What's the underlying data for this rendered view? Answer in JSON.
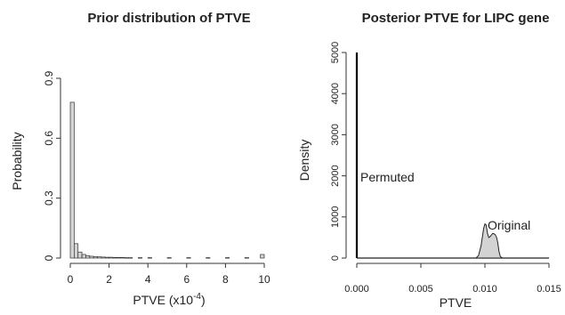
{
  "chart_data": [
    {
      "type": "bar",
      "title": "Prior distribution of PTVE",
      "xlabel": "PTVE (x10",
      "xlabel_exp": "-4",
      "xlabel_close": ")",
      "ylabel": "Probability",
      "xlim": [
        0,
        10
      ],
      "ylim": [
        0,
        0.9
      ],
      "xticks": [
        "0",
        "2",
        "4",
        "6",
        "8",
        "10"
      ],
      "xtick_values": [
        0,
        2,
        4,
        6,
        8,
        10
      ],
      "yticks": [
        "0",
        "0.3",
        "0.6",
        "0.9"
      ],
      "ytick_values": [
        0,
        0.3,
        0.6,
        0.9
      ],
      "bin_width": 0.2,
      "bins": [
        {
          "x": 0.0,
          "value": 0.78
        },
        {
          "x": 0.2,
          "value": 0.072
        },
        {
          "x": 0.4,
          "value": 0.03
        },
        {
          "x": 0.6,
          "value": 0.018
        },
        {
          "x": 0.8,
          "value": 0.012
        },
        {
          "x": 1.0,
          "value": 0.009
        },
        {
          "x": 1.2,
          "value": 0.007
        },
        {
          "x": 1.4,
          "value": 0.006
        },
        {
          "x": 1.6,
          "value": 0.005
        },
        {
          "x": 1.8,
          "value": 0.004
        },
        {
          "x": 2.0,
          "value": 0.004
        },
        {
          "x": 2.2,
          "value": 0.003
        },
        {
          "x": 2.4,
          "value": 0.003
        },
        {
          "x": 2.6,
          "value": 0.003
        },
        {
          "x": 2.8,
          "value": 0.002
        },
        {
          "x": 3.0,
          "value": 0.002
        },
        {
          "x": 3.5,
          "value": 0.002
        },
        {
          "x": 4.0,
          "value": 0.002
        },
        {
          "x": 5.0,
          "value": 0.002
        },
        {
          "x": 6.0,
          "value": 0.002
        },
        {
          "x": 7.0,
          "value": 0.002
        },
        {
          "x": 8.0,
          "value": 0.002
        },
        {
          "x": 9.0,
          "value": 0.002
        },
        {
          "x": 9.8,
          "value": 0.018
        }
      ],
      "bar_fill": "#d3d3d3"
    },
    {
      "type": "area",
      "title": "Posterior PTVE for LIPC gene",
      "xlabel": "PTVE",
      "ylabel": "Density",
      "xlim": [
        0,
        0.015
      ],
      "ylim": [
        0,
        5000
      ],
      "xticks": [
        "0.000",
        "0.005",
        "0.010",
        "0.015"
      ],
      "xtick_values": [
        0,
        0.005,
        0.01,
        0.015
      ],
      "yticks": [
        "0",
        "1000",
        "2000",
        "3000",
        "4000",
        "5000"
      ],
      "ytick_values": [
        0,
        1000,
        2000,
        3000,
        4000,
        5000
      ],
      "series": [
        {
          "name": "Permuted",
          "spike_x": 0.0,
          "spike_height": 5000
        },
        {
          "name": "Original",
          "x": [
            0.0093,
            0.0095,
            0.0097,
            0.0099,
            0.01,
            0.0101,
            0.0102,
            0.0103,
            0.0104,
            0.0105,
            0.0106,
            0.0107,
            0.0108,
            0.0109,
            0.011,
            0.0111,
            0.0112,
            0.0113,
            0.0114
          ],
          "y": [
            0,
            60,
            300,
            720,
            830,
            800,
            600,
            500,
            520,
            560,
            600,
            590,
            570,
            510,
            380,
            160,
            40,
            10,
            0
          ],
          "fill": "#d3d3d3"
        }
      ]
    }
  ]
}
